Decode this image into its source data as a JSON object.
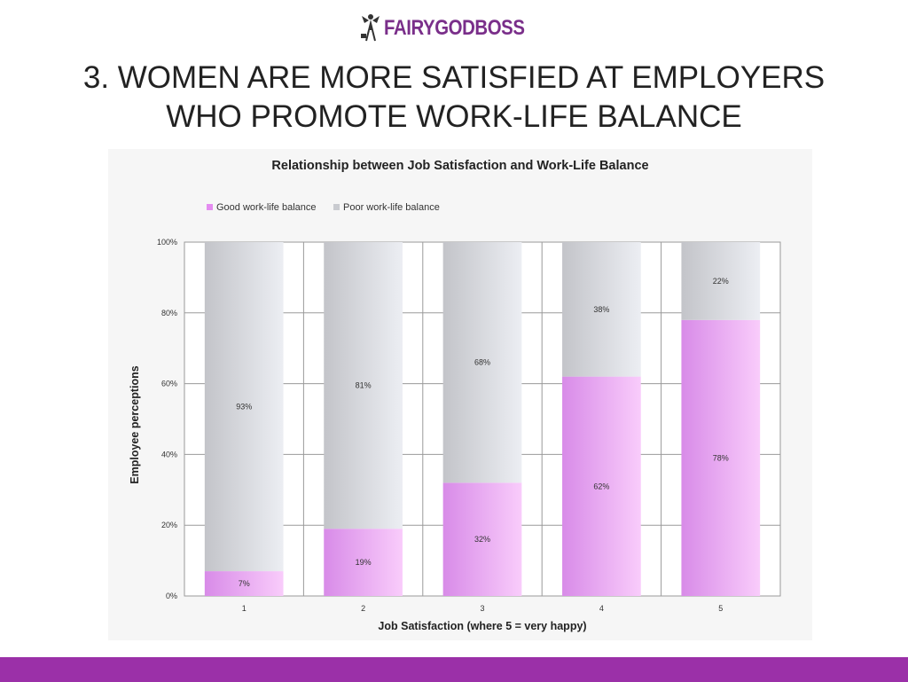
{
  "brand": {
    "name": "FAIRYGODBOSS",
    "color": "#7a2f8a",
    "logo_icon": "fairy-icon"
  },
  "slide": {
    "title_line1": "3. WOMEN ARE MORE SATISFIED AT EMPLOYERS",
    "title_line2": "WHO PROMOTE WORK-LIFE BALANCE"
  },
  "footer": {
    "color": "#9b30a8"
  },
  "chart_data": {
    "type": "bar",
    "stacked": true,
    "title": "Relationship between Job Satisfaction and Work-Life Balance",
    "xlabel": "Job Satisfaction (where 5 = very happy)",
    "ylabel": "Employee perceptions",
    "categories": [
      "1",
      "2",
      "3",
      "4",
      "5"
    ],
    "ylim": [
      0,
      100
    ],
    "yticks": [
      "0%",
      "20%",
      "40%",
      "60%",
      "80%",
      "100%"
    ],
    "grid": true,
    "legend_position": "top-left",
    "series": [
      {
        "name": "Good work-life balance",
        "values": [
          7,
          19,
          32,
          62,
          78
        ],
        "labels": [
          "7%",
          "19%",
          "32%",
          "62%",
          "78%"
        ],
        "color": "#e48cf0"
      },
      {
        "name": "Poor work-life balance",
        "values": [
          93,
          81,
          68,
          38,
          22
        ],
        "labels": [
          "93%",
          "81%",
          "68%",
          "38%",
          "22%"
        ],
        "color": "#c9cbd0"
      }
    ]
  }
}
